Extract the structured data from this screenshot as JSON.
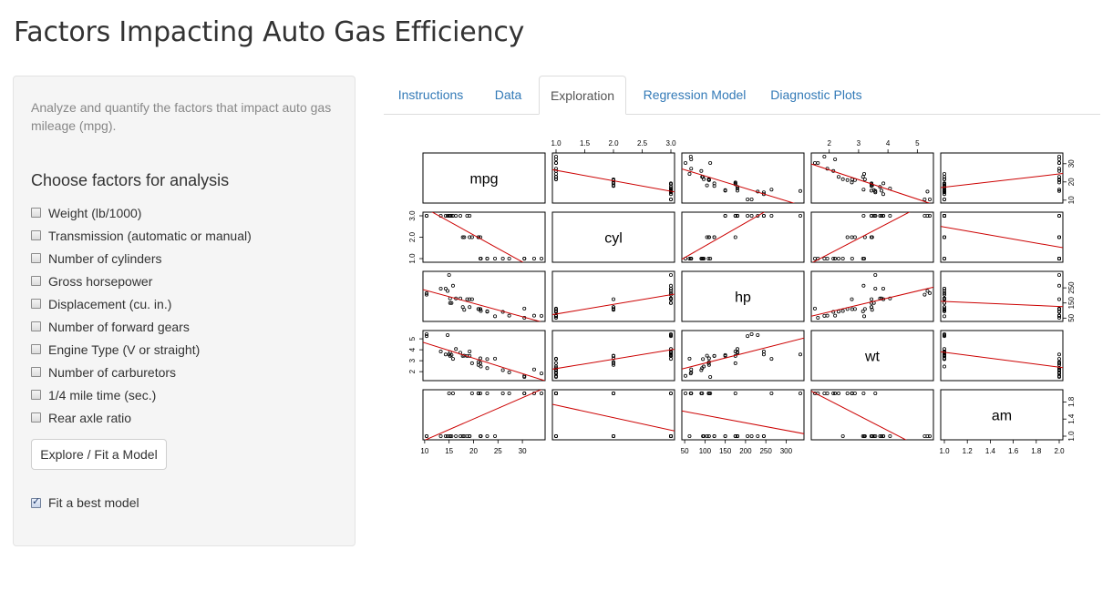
{
  "app": {
    "title": "Factors Impacting Auto Gas Efficiency"
  },
  "sidebar": {
    "intro": "Analyze and quantify the factors that impact auto gas mileage (mpg).",
    "section_title": "Choose factors for analysis",
    "factors": [
      {
        "label": "Weight (lb/1000)",
        "checked": false
      },
      {
        "label": "Transmission (automatic or manual)",
        "checked": false
      },
      {
        "label": "Number of cylinders",
        "checked": false
      },
      {
        "label": "Gross horsepower",
        "checked": false
      },
      {
        "label": "Displacement (cu. in.)",
        "checked": false
      },
      {
        "label": "Number of forward gears",
        "checked": false
      },
      {
        "label": "Engine Type (V or straight)",
        "checked": false
      },
      {
        "label": "Number of carburetors",
        "checked": false
      },
      {
        "label": "1/4 mile time (sec.)",
        "checked": false
      },
      {
        "label": "Rear axle ratio",
        "checked": false
      }
    ],
    "explore_button": "Explore / Fit a Model",
    "best_model": {
      "label": "Fit a best model",
      "checked": true
    }
  },
  "tabs": [
    {
      "label": "Instructions",
      "active": false
    },
    {
      "label": "Data",
      "active": false
    },
    {
      "label": "Exploration",
      "active": true
    },
    {
      "label": "Regression Model",
      "active": false
    },
    {
      "label": "Diagnostic Plots",
      "active": false
    }
  ],
  "colors": {
    "link": "#337ab7",
    "fit_line": "#cc0000"
  },
  "chart_data": {
    "type": "scatter",
    "variables": [
      "mpg",
      "cyl",
      "hp",
      "wt",
      "am"
    ],
    "ranges": {
      "mpg": [
        10.4,
        33.9
      ],
      "cyl": [
        1,
        3
      ],
      "hp": [
        52,
        335
      ],
      "wt": [
        1.513,
        5.424
      ],
      "am": [
        1,
        2
      ]
    },
    "tick_labels": {
      "mpg": [
        "10",
        "15",
        "20",
        "25",
        "30"
      ],
      "cyl": [
        "1.0",
        "1.5",
        "2.0",
        "2.5",
        "3.0"
      ],
      "hp": [
        "50",
        "100",
        "150",
        "200",
        "250",
        "300"
      ],
      "wt": [
        "2",
        "3",
        "4",
        "5"
      ],
      "am": [
        "1.0",
        "1.2",
        "1.4",
        "1.6",
        "1.8",
        "2.0"
      ],
      "mpg_right": [
        "10",
        "20",
        "30"
      ],
      "cyl_left": [
        "1.0",
        "2.0",
        "3.0"
      ],
      "hp_right": [
        "50",
        "150",
        "250"
      ],
      "wt_left": [
        "2",
        "3",
        "4",
        "5"
      ],
      "am_right": [
        "1.0",
        "1.4",
        "1.8"
      ]
    },
    "rows": [
      {
        "mpg": 21,
        "cyl": 2,
        "hp": 110,
        "wt": 2.62,
        "am": 2
      },
      {
        "mpg": 21,
        "cyl": 2,
        "hp": 110,
        "wt": 2.875,
        "am": 2
      },
      {
        "mpg": 22.8,
        "cyl": 1,
        "hp": 93,
        "wt": 2.32,
        "am": 2
      },
      {
        "mpg": 21.4,
        "cyl": 2,
        "hp": 110,
        "wt": 3.215,
        "am": 1
      },
      {
        "mpg": 18.7,
        "cyl": 3,
        "hp": 175,
        "wt": 3.44,
        "am": 1
      },
      {
        "mpg": 18.1,
        "cyl": 2,
        "hp": 105,
        "wt": 3.46,
        "am": 1
      },
      {
        "mpg": 14.3,
        "cyl": 3,
        "hp": 245,
        "wt": 3.57,
        "am": 1
      },
      {
        "mpg": 24.4,
        "cyl": 1,
        "hp": 62,
        "wt": 3.19,
        "am": 1
      },
      {
        "mpg": 22.8,
        "cyl": 1,
        "hp": 95,
        "wt": 3.15,
        "am": 1
      },
      {
        "mpg": 19.2,
        "cyl": 2,
        "hp": 123,
        "wt": 3.44,
        "am": 1
      },
      {
        "mpg": 17.8,
        "cyl": 2,
        "hp": 123,
        "wt": 3.44,
        "am": 1
      },
      {
        "mpg": 16.4,
        "cyl": 3,
        "hp": 180,
        "wt": 4.07,
        "am": 1
      },
      {
        "mpg": 17.3,
        "cyl": 3,
        "hp": 180,
        "wt": 3.73,
        "am": 1
      },
      {
        "mpg": 15.2,
        "cyl": 3,
        "hp": 180,
        "wt": 3.78,
        "am": 1
      },
      {
        "mpg": 10.4,
        "cyl": 3,
        "hp": 205,
        "wt": 5.25,
        "am": 1
      },
      {
        "mpg": 10.4,
        "cyl": 3,
        "hp": 215,
        "wt": 5.424,
        "am": 1
      },
      {
        "mpg": 14.7,
        "cyl": 3,
        "hp": 230,
        "wt": 5.345,
        "am": 1
      },
      {
        "mpg": 32.4,
        "cyl": 1,
        "hp": 66,
        "wt": 2.2,
        "am": 2
      },
      {
        "mpg": 30.4,
        "cyl": 1,
        "hp": 52,
        "wt": 1.615,
        "am": 2
      },
      {
        "mpg": 33.9,
        "cyl": 1,
        "hp": 65,
        "wt": 1.835,
        "am": 2
      },
      {
        "mpg": 21.5,
        "cyl": 1,
        "hp": 97,
        "wt": 2.465,
        "am": 1
      },
      {
        "mpg": 15.5,
        "cyl": 3,
        "hp": 150,
        "wt": 3.52,
        "am": 1
      },
      {
        "mpg": 15.2,
        "cyl": 3,
        "hp": 150,
        "wt": 3.435,
        "am": 1
      },
      {
        "mpg": 13.3,
        "cyl": 3,
        "hp": 245,
        "wt": 3.84,
        "am": 1
      },
      {
        "mpg": 19.2,
        "cyl": 3,
        "hp": 175,
        "wt": 3.845,
        "am": 1
      },
      {
        "mpg": 27.3,
        "cyl": 1,
        "hp": 66,
        "wt": 1.935,
        "am": 2
      },
      {
        "mpg": 26,
        "cyl": 1,
        "hp": 91,
        "wt": 2.14,
        "am": 2
      },
      {
        "mpg": 30.4,
        "cyl": 1,
        "hp": 113,
        "wt": 1.513,
        "am": 2
      },
      {
        "mpg": 15.8,
        "cyl": 3,
        "hp": 264,
        "wt": 3.17,
        "am": 2
      },
      {
        "mpg": 19.7,
        "cyl": 2,
        "hp": 175,
        "wt": 2.77,
        "am": 2
      },
      {
        "mpg": 15,
        "cyl": 3,
        "hp": 335,
        "wt": 3.57,
        "am": 2
      },
      {
        "mpg": 21.4,
        "cyl": 1,
        "hp": 109,
        "wt": 2.78,
        "am": 2
      }
    ],
    "fit_line": "least-squares, red",
    "grid": false
  }
}
